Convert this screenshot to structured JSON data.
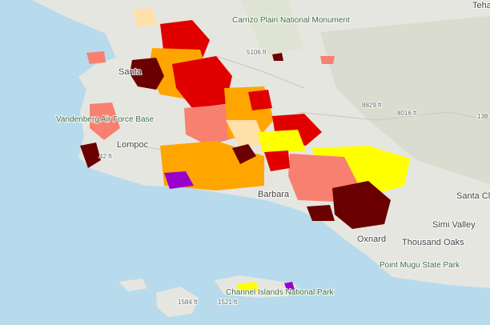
{
  "map": {
    "labels": [
      "Tehach",
      "Carrizo Plain National Monument",
      "5106 ft",
      "Santa",
      "Vandenberg Air Force Base",
      "Lompoc",
      "42 ft",
      "8829 ft",
      "8016 ft",
      "Barbara",
      "Santa Clarita",
      "Simi Valley",
      "Oxnard",
      "Thousand Oaks",
      "Point Mugu State Park",
      "Channel Islands National Park",
      "1584 ft",
      "1521 ft",
      "138"
    ]
  }
}
